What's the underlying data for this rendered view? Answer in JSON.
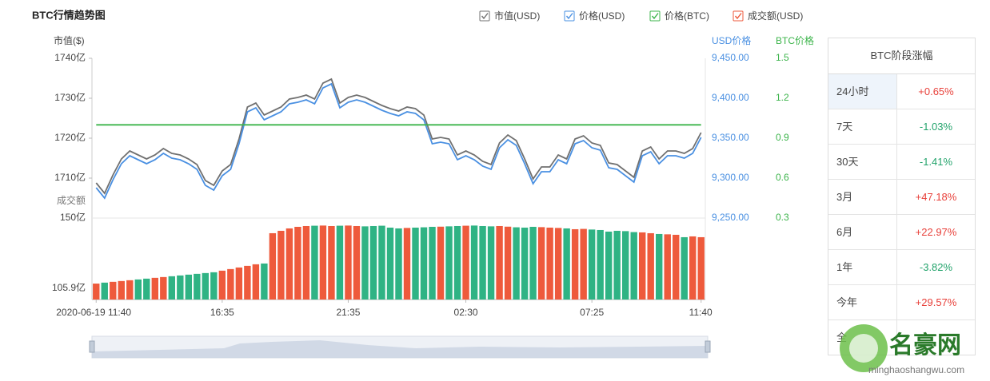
{
  "chart_data": {
    "type": "line",
    "title": "BTC行情趋势图",
    "ylabel": "市值($)",
    "y2label": "USD价格",
    "y3label": "BTC价格",
    "vlabel": "成交额",
    "categories": [
      "2020-06-19 11:40",
      null,
      null,
      null,
      null,
      null,
      null,
      null,
      null,
      null,
      null,
      null,
      null,
      null,
      null,
      "16:35",
      null,
      null,
      null,
      null,
      null,
      null,
      null,
      null,
      null,
      null,
      null,
      null,
      null,
      null,
      "21:35",
      null,
      null,
      null,
      null,
      null,
      null,
      null,
      null,
      null,
      null,
      null,
      null,
      null,
      "02:30",
      null,
      null,
      null,
      null,
      null,
      null,
      null,
      null,
      null,
      null,
      null,
      null,
      null,
      null,
      "07:25",
      null,
      null,
      null,
      null,
      null,
      null,
      null,
      null,
      null,
      null,
      null,
      null,
      "11:40"
    ],
    "ylim": [
      1700,
      1740
    ],
    "yticks": [
      {
        "value": 1740,
        "label": "1740亿"
      },
      {
        "value": 1730,
        "label": "1730亿"
      },
      {
        "value": 1720,
        "label": "1720亿"
      },
      {
        "value": 1710,
        "label": "1710亿"
      }
    ],
    "y2lim": [
      9250,
      9450
    ],
    "y2ticks": [
      {
        "value": 9450,
        "label": "9,450.00"
      },
      {
        "value": 9400,
        "label": "9,400.00"
      },
      {
        "value": 9350,
        "label": "9,350.00"
      },
      {
        "value": 9300,
        "label": "9,300.00"
      },
      {
        "value": 9250,
        "label": "9,250.00"
      }
    ],
    "y3lim": [
      0.3,
      1.5
    ],
    "y3ticks": [
      1.5,
      1.2,
      0.9,
      0.6,
      0.3
    ],
    "vlim": [
      98.9,
      150
    ],
    "vticks": [
      {
        "value": 150,
        "label": "150亿"
      },
      {
        "value": 105.9,
        "label": "105.9亿"
      }
    ],
    "series": [
      {
        "name": "市值(USD)",
        "color": "#707070",
        "axis": "y",
        "values": [
          1708.8,
          1706.2,
          1710.8,
          1714.8,
          1716.8,
          1715.8,
          1714.8,
          1715.8,
          1717.4,
          1716.2,
          1715.8,
          1714.8,
          1713.4,
          1709.4,
          1708.2,
          1711.8,
          1713.4,
          1719.8,
          1727.8,
          1728.8,
          1725.8,
          1726.8,
          1727.8,
          1729.8,
          1730.2,
          1730.8,
          1729.8,
          1733.8,
          1734.8,
          1728.8,
          1730.2,
          1730.8,
          1730.2,
          1729.2,
          1728.2,
          1727.4,
          1726.8,
          1727.8,
          1727.4,
          1725.8,
          1719.8,
          1720.2,
          1719.8,
          1715.8,
          1716.8,
          1715.8,
          1714.2,
          1713.4,
          1718.8,
          1720.8,
          1719.4,
          1714.8,
          1709.8,
          1712.8,
          1712.8,
          1715.8,
          1714.8,
          1719.8,
          1720.6,
          1718.8,
          1718.2,
          1713.8,
          1713.4,
          1711.8,
          1710.2,
          1716.8,
          1717.8,
          1714.8,
          1716.8,
          1716.8,
          1716.2,
          1717.4,
          1721.4
        ]
      },
      {
        "name": "价格(USD)",
        "color": "#4a90e2",
        "axis": "y2",
        "values": [
          9288,
          9275,
          9298,
          9318,
          9328,
          9323,
          9318,
          9323,
          9331,
          9325,
          9323,
          9318,
          9311,
          9291,
          9285,
          9303,
          9311,
          9343,
          9383,
          9388,
          9373,
          9378,
          9383,
          9393,
          9395,
          9398,
          9393,
          9413,
          9418,
          9388,
          9395,
          9398,
          9395,
          9390,
          9385,
          9381,
          9378,
          9383,
          9381,
          9373,
          9343,
          9345,
          9343,
          9323,
          9328,
          9323,
          9315,
          9311,
          9338,
          9348,
          9341,
          9318,
          9293,
          9308,
          9308,
          9323,
          9318,
          9343,
          9347,
          9338,
          9335,
          9313,
          9311,
          9303,
          9295,
          9328,
          9333,
          9318,
          9328,
          9328,
          9325,
          9331,
          9351
        ]
      },
      {
        "name": "价格(BTC)",
        "color": "#3cb44b",
        "axis": "y3",
        "values": [
          1,
          1,
          1,
          1,
          1,
          1,
          1,
          1,
          1,
          1,
          1,
          1,
          1,
          1,
          1,
          1,
          1,
          1,
          1,
          1,
          1,
          1,
          1,
          1,
          1,
          1,
          1,
          1,
          1,
          1,
          1,
          1,
          1,
          1,
          1,
          1,
          1,
          1,
          1,
          1,
          1,
          1,
          1,
          1,
          1,
          1,
          1,
          1,
          1,
          1,
          1,
          1,
          1,
          1,
          1,
          1,
          1,
          1,
          1,
          1,
          1,
          1,
          1,
          1,
          1,
          1,
          1,
          1,
          1,
          1,
          1,
          1,
          1
        ]
      },
      {
        "name": "成交额(USD)",
        "color": "#ee5a3c",
        "down_color": "#2fb384",
        "axis": "v",
        "type": "bar",
        "values": [
          108.9,
          109.5,
          110.0,
          110.5,
          111.0,
          111.5,
          112.0,
          112.5,
          113.0,
          113.5,
          114.0,
          114.5,
          115.0,
          115.5,
          116.0,
          117.0,
          118.0,
          119.0,
          120.0,
          121.0,
          121.5,
          140.5,
          142.0,
          143.5,
          144.5,
          145.0,
          145.2,
          145.3,
          145.0,
          145.2,
          145.3,
          145.0,
          144.8,
          145.0,
          145.2,
          144.0,
          143.5,
          143.8,
          144.0,
          144.2,
          144.5,
          144.6,
          144.8,
          145.0,
          145.2,
          145.3,
          145.0,
          144.8,
          145.0,
          144.6,
          144.2,
          144.0,
          144.5,
          144.3,
          144.0,
          143.8,
          143.5,
          143.0,
          143.2,
          142.8,
          142.5,
          141.5,
          142.0,
          141.8,
          141.2,
          141.0,
          140.5,
          140.0,
          139.8,
          139.5,
          138.0,
          138.5,
          138.0
        ]
      }
    ]
  },
  "table": {
    "title": "BTC阶段涨幅",
    "up_color": "#e8403a",
    "down_color": "#22a36b",
    "rows": [
      [
        "24小时",
        "+0.65%"
      ],
      [
        "7天",
        "-1.03%"
      ],
      [
        "30天",
        "-1.41%"
      ],
      [
        "3月",
        "+47.18%"
      ],
      [
        "6月",
        "+22.97%"
      ],
      [
        "1年",
        "-3.82%"
      ],
      [
        "今年",
        "+29.57%"
      ],
      [
        "全"
      ]
    ]
  },
  "watermark": {
    "name": "名豪网",
    "url": "minghaoshangwu.com"
  }
}
